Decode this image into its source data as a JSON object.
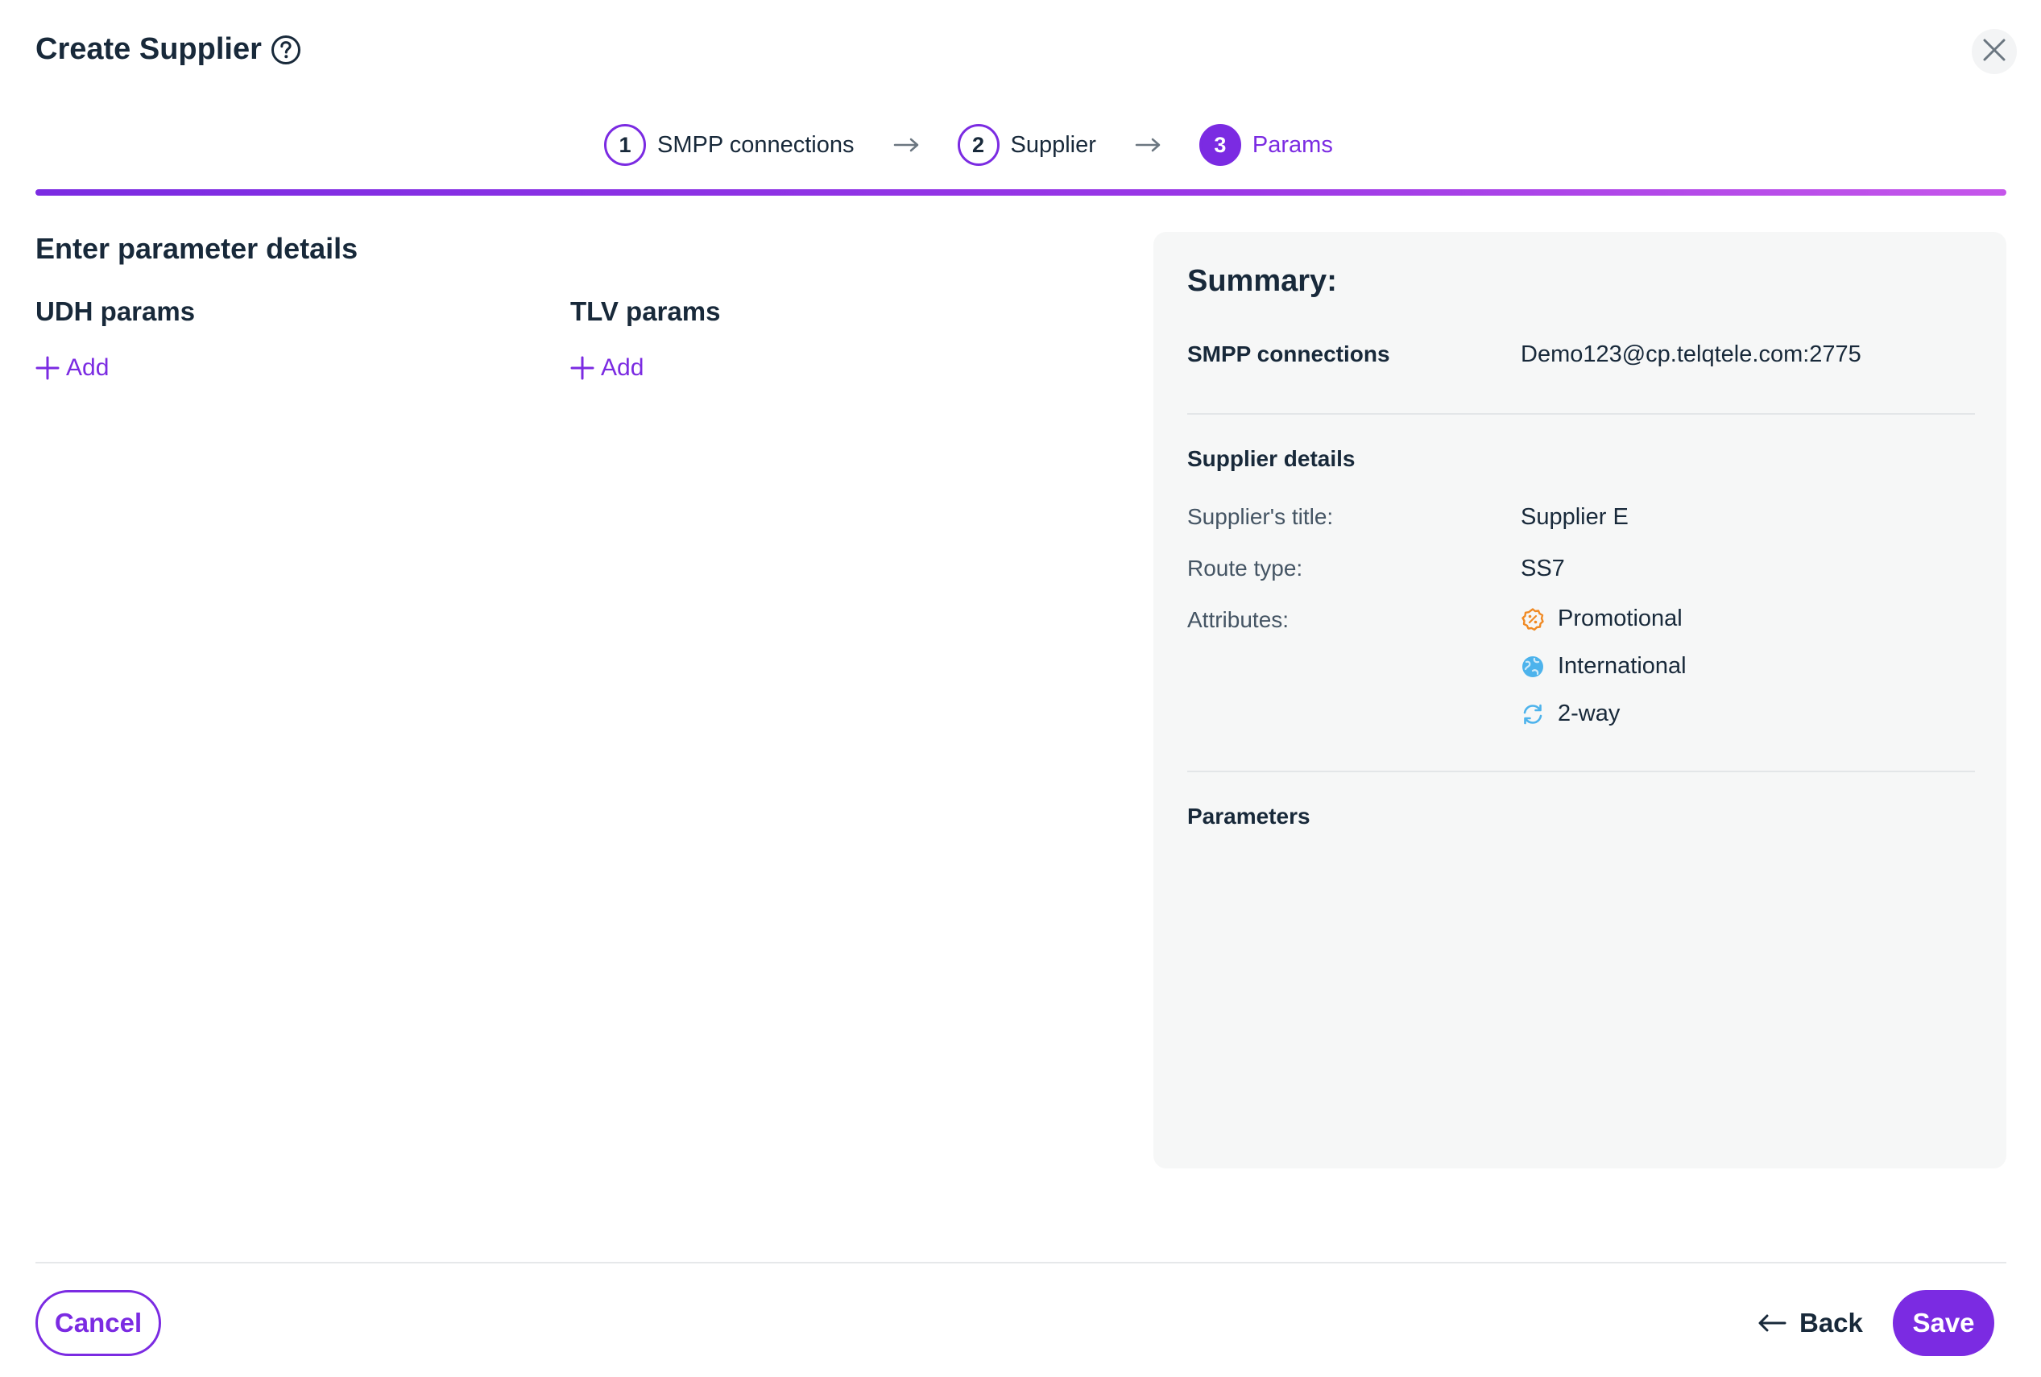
{
  "header": {
    "title": "Create Supplier",
    "help_icon": "question-circle-icon",
    "close_icon": "close-icon"
  },
  "stepper": {
    "steps": [
      {
        "number": "1",
        "label": "SMPP connections",
        "state": "completed"
      },
      {
        "number": "2",
        "label": "Supplier",
        "state": "completed"
      },
      {
        "number": "3",
        "label": "Params",
        "state": "active"
      }
    ],
    "separator_icon": "arrow-right-icon"
  },
  "main": {
    "section_title": "Enter parameter details",
    "udh": {
      "title": "UDH params",
      "add_label": "Add"
    },
    "tlv": {
      "title": "TLV params",
      "add_label": "Add"
    }
  },
  "summary": {
    "title": "Summary:",
    "smpp": {
      "label": "SMPP connections",
      "value": "Demo123@cp.telqtele.com:2775"
    },
    "supplier_details": {
      "heading": "Supplier details",
      "title_label": "Supplier's title:",
      "title_value": "Supplier E",
      "route_label": "Route type:",
      "route_value": "SS7",
      "attributes_label": "Attributes:",
      "attributes": [
        {
          "label": "Promotional",
          "icon": "promotional-badge-icon",
          "color": "#f08a24"
        },
        {
          "label": "International",
          "icon": "globe-icon",
          "color": "#4db3ec"
        },
        {
          "label": "2-way",
          "icon": "two-way-sync-icon",
          "color": "#4db3ec"
        }
      ]
    },
    "parameters_heading": "Parameters"
  },
  "footer": {
    "cancel_label": "Cancel",
    "back_label": "Back",
    "save_label": "Save"
  },
  "colors": {
    "accent": "#7b2be2",
    "text": "#18293a",
    "summary_bg": "#f6f7f7"
  }
}
